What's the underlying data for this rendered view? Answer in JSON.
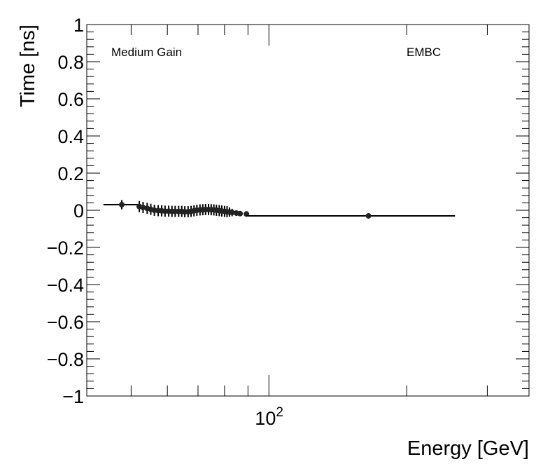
{
  "chart_data": {
    "type": "scatter",
    "xlabel": "Energy [GeV]",
    "ylabel": "Time [ns]",
    "xscale": "log",
    "xlim": [
      40,
      370
    ],
    "ylim": [
      -1,
      1
    ],
    "x_ticks": [
      {
        "value": 100,
        "base": "10",
        "exp": "2"
      }
    ],
    "y_ticks": [
      {
        "value": 1,
        "label": "1"
      },
      {
        "value": 0.8,
        "label": "0.8"
      },
      {
        "value": 0.6,
        "label": "0.6"
      },
      {
        "value": 0.4,
        "label": "0.4"
      },
      {
        "value": 0.2,
        "label": "0.2"
      },
      {
        "value": 0,
        "label": "0"
      },
      {
        "value": -0.2,
        "label": "−0.2"
      },
      {
        "value": -0.4,
        "label": "−0.4"
      },
      {
        "value": -0.6,
        "label": "−0.6"
      },
      {
        "value": -0.8,
        "label": "−0.8"
      },
      {
        "value": -1,
        "label": "−1"
      }
    ],
    "annotations": {
      "left": "Medium Gain",
      "right": "EMBC"
    },
    "grid": false,
    "points": [
      {
        "x": 47.7,
        "y": 0.03,
        "err": 0.025,
        "xlo": 43.5,
        "xhi": 52.1
      },
      {
        "x": 52.1,
        "y": 0.02,
        "err": 0.03
      },
      {
        "x": 53.1,
        "y": 0.015,
        "err": 0.03
      },
      {
        "x": 54.2,
        "y": 0.01,
        "err": 0.03
      },
      {
        "x": 55.2,
        "y": 0.005,
        "err": 0.03
      },
      {
        "x": 56.2,
        "y": 0.0,
        "err": 0.03
      },
      {
        "x": 57.3,
        "y": -0.002,
        "err": 0.03
      },
      {
        "x": 58.3,
        "y": -0.003,
        "err": 0.03
      },
      {
        "x": 59.3,
        "y": -0.005,
        "err": 0.03
      },
      {
        "x": 60.4,
        "y": -0.005,
        "err": 0.03
      },
      {
        "x": 61.4,
        "y": -0.006,
        "err": 0.03
      },
      {
        "x": 62.4,
        "y": -0.006,
        "err": 0.03
      },
      {
        "x": 63.5,
        "y": -0.006,
        "err": 0.03
      },
      {
        "x": 64.5,
        "y": -0.006,
        "err": 0.03
      },
      {
        "x": 65.5,
        "y": -0.008,
        "err": 0.03
      },
      {
        "x": 66.6,
        "y": -0.008,
        "err": 0.03
      },
      {
        "x": 67.6,
        "y": -0.006,
        "err": 0.03
      },
      {
        "x": 68.6,
        "y": -0.003,
        "err": 0.03
      },
      {
        "x": 69.6,
        "y": 0.0,
        "err": 0.03
      },
      {
        "x": 70.7,
        "y": 0.002,
        "err": 0.03
      },
      {
        "x": 71.7,
        "y": 0.003,
        "err": 0.03
      },
      {
        "x": 72.7,
        "y": 0.004,
        "err": 0.03
      },
      {
        "x": 73.8,
        "y": 0.004,
        "err": 0.03
      },
      {
        "x": 74.8,
        "y": 0.003,
        "err": 0.03
      },
      {
        "x": 75.8,
        "y": 0.002,
        "err": 0.03
      },
      {
        "x": 76.8,
        "y": 0.0,
        "err": 0.03
      },
      {
        "x": 77.9,
        "y": -0.002,
        "err": 0.03
      },
      {
        "x": 78.9,
        "y": -0.004,
        "err": 0.03
      },
      {
        "x": 80.0,
        "y": -0.006,
        "err": 0.03
      },
      {
        "x": 81.0,
        "y": -0.008,
        "err": 0.03
      },
      {
        "x": 82.0,
        "y": -0.01,
        "err": 0.025
      },
      {
        "x": 83.1,
        "y": -0.012,
        "err": 0.02
      },
      {
        "x": 84.9,
        "y": -0.015,
        "err": 0.015
      },
      {
        "x": 86.5,
        "y": -0.018,
        "err": 0.012
      },
      {
        "x": 89.3,
        "y": -0.02,
        "err": 0.01
      },
      {
        "x": 165.0,
        "y": -0.03,
        "err": 0.005,
        "xlo": 89.3,
        "xhi": 255.0
      }
    ]
  }
}
